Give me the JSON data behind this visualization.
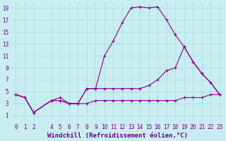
{
  "xlabel": "Windchill (Refroidissement éolien,°C)",
  "bg_color": "#c8eef0",
  "grid_color": "#a8d8e0",
  "line_color": "#8b008b",
  "xlim": [
    -0.5,
    23.5
  ],
  "ylim": [
    0,
    20
  ],
  "xticks": [
    0,
    1,
    2,
    4,
    5,
    6,
    7,
    8,
    9,
    10,
    11,
    12,
    13,
    14,
    15,
    16,
    17,
    18,
    19,
    20,
    21,
    22,
    23
  ],
  "yticks": [
    1,
    3,
    5,
    7,
    9,
    11,
    13,
    15,
    17,
    19
  ],
  "line1_x": [
    0,
    1,
    2,
    4,
    5,
    6,
    7,
    8,
    9,
    10,
    11,
    12,
    13,
    14,
    15,
    16,
    17,
    18,
    19,
    20,
    21,
    22,
    23
  ],
  "line1_y": [
    4.5,
    4.0,
    1.5,
    3.5,
    4.0,
    3.0,
    3.0,
    5.5,
    5.5,
    11.0,
    13.5,
    16.5,
    19.0,
    19.2,
    19.0,
    19.2,
    17.0,
    14.5,
    12.5,
    10.0,
    8.0,
    6.5,
    4.5
  ],
  "line2_x": [
    0,
    1,
    2,
    4,
    5,
    6,
    7,
    8,
    9,
    10,
    11,
    12,
    13,
    14,
    15,
    16,
    17,
    18,
    19,
    20,
    21,
    22,
    23
  ],
  "line2_y": [
    4.5,
    4.0,
    1.5,
    3.5,
    3.5,
    3.0,
    3.0,
    5.5,
    5.5,
    5.5,
    5.5,
    5.5,
    5.5,
    5.5,
    6.0,
    7.0,
    8.5,
    9.0,
    12.5,
    10.0,
    8.0,
    6.5,
    4.5
  ],
  "line3_x": [
    0,
    1,
    2,
    4,
    5,
    6,
    7,
    8,
    9,
    10,
    11,
    12,
    13,
    14,
    15,
    16,
    17,
    18,
    19,
    20,
    21,
    22,
    23
  ],
  "line3_y": [
    4.5,
    4.0,
    1.5,
    3.5,
    3.5,
    3.0,
    3.0,
    3.0,
    3.5,
    3.5,
    3.5,
    3.5,
    3.5,
    3.5,
    3.5,
    3.5,
    3.5,
    3.5,
    4.0,
    4.0,
    4.0,
    4.5,
    4.5
  ],
  "marker": "+",
  "markersize": 3,
  "linewidth": 0.8,
  "tick_fontsize": 5.5,
  "xlabel_fontsize": 6.5
}
